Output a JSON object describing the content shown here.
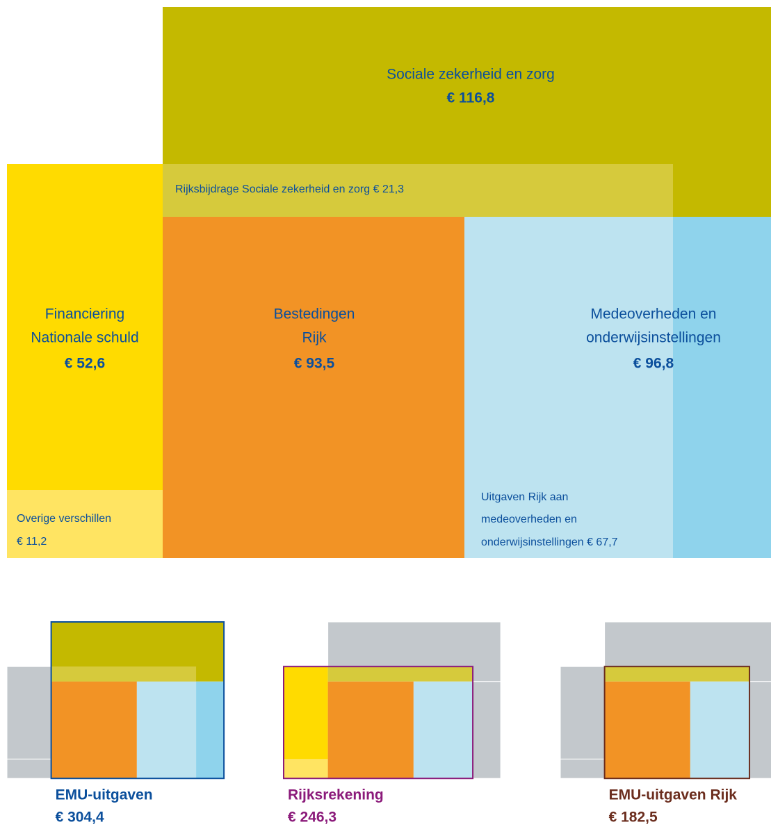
{
  "blocks": {
    "social": {
      "lines": [
        "Sociale zekerheid en zorg"
      ],
      "amount": "€ 116,8"
    },
    "financing": {
      "lines": [
        "Financiering",
        "Nationale schuld"
      ],
      "amount": "€ 52,6"
    },
    "contribution": {
      "lines": [
        "Rijksbijdrage Sociale zekerheid en zorg € 21,3"
      ]
    },
    "spending": {
      "lines": [
        "Bestedingen",
        "Rijk"
      ],
      "amount": "€ 93,5"
    },
    "local": {
      "lines": [
        "Medeoverheden en",
        "onderwijsinstellingen"
      ],
      "amount": "€ 96,8"
    },
    "other": {
      "lines": [
        "Overige verschillen",
        "€ 11,2"
      ]
    },
    "transfer": {
      "lines": [
        "Uitgaven Rijk aan",
        "medeoverheden en",
        "onderwijsinstellingen € 67,7"
      ]
    }
  },
  "totals": [
    {
      "name": "EMU-uitgaven",
      "amount": "€ 304,4"
    },
    {
      "name": "Rijksrekening",
      "amount": "€ 246,3"
    },
    {
      "name": "EMU-uitgaven Rijk",
      "amount": "€ 182,5"
    }
  ]
}
